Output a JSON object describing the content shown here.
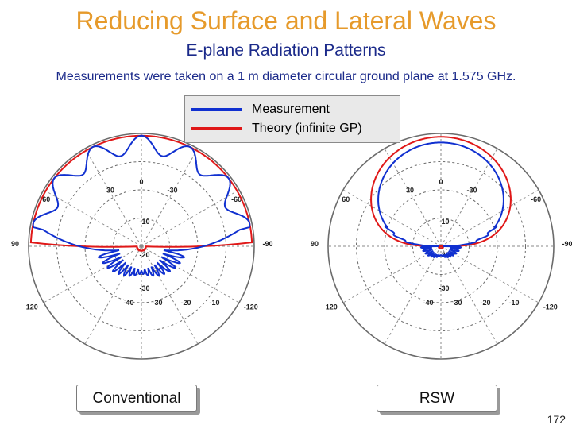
{
  "slide": {
    "title": "Reducing Surface and Lateral Waves",
    "subtitle": "E-plane Radiation Patterns",
    "note": "Measurements were taken on a 1 m diameter circular ground plane at  1.575 GHz.",
    "page_number": "172"
  },
  "legend": [
    {
      "label": "Measurement",
      "color": "#1030d0"
    },
    {
      "label": "Theory (infinite GP)",
      "color": "#e01818"
    }
  ],
  "buttons": {
    "left": "Conventional",
    "right": "RSW"
  },
  "chart_data": [
    {
      "type": "polar",
      "caption": "Conventional",
      "angle_labels": [
        "0",
        "30",
        "-30",
        "60",
        "-60",
        "90",
        "-90",
        "120",
        "-120"
      ],
      "radial_labels": [
        "-10",
        "-20",
        "-30"
      ],
      "lower_labels": [
        "-40",
        "-30",
        "-20",
        "-10"
      ],
      "series": [
        {
          "name": "Measurement",
          "color": "#1030d0",
          "pattern": "conventional-measured"
        },
        {
          "name": "Theory (infinite GP)",
          "color": "#e01818",
          "pattern": "theory"
        }
      ]
    },
    {
      "type": "polar",
      "caption": "RSW",
      "angle_labels": [
        "0",
        "30",
        "-30",
        "60",
        "-60",
        "90",
        "-90",
        "120",
        "-120"
      ],
      "radial_labels": [
        "-10",
        "-20",
        "-30"
      ],
      "lower_labels": [
        "-40",
        "-30",
        "-20",
        "-10"
      ],
      "series": [
        {
          "name": "Measurement",
          "color": "#1030d0",
          "pattern": "rsw-measured"
        },
        {
          "name": "Theory (infinite GP)",
          "color": "#e01818",
          "pattern": "theory"
        }
      ]
    }
  ]
}
